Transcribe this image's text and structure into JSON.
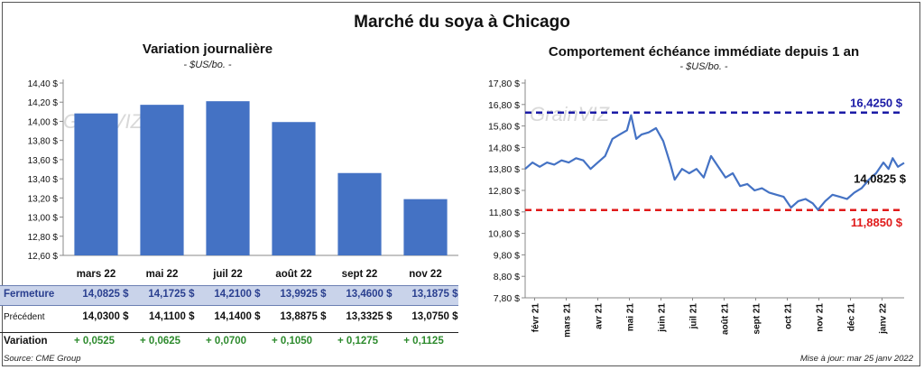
{
  "title": "Marché du soya à Chicago",
  "left": {
    "title": "Variation journalière",
    "units": "- $US/bo. -",
    "rows": {
      "close_label": "Fermeture",
      "prev_label": "Précédent",
      "var_label": "Variation",
      "close": [
        "14,0825  $",
        "14,1725  $",
        "14,2100  $",
        "13,9925  $",
        "13,4600  $",
        "13,1875  $"
      ],
      "prev": [
        "14,0300  $",
        "14,1100  $",
        "14,1400  $",
        "13,8875  $",
        "13,3325  $",
        "13,0750  $"
      ],
      "var": [
        "+ 0,0525",
        "+ 0,0625",
        "+ 0,0700",
        "+ 0,1050",
        "+ 0,1275",
        "+ 0,1125"
      ]
    }
  },
  "right": {
    "title": "Comportement  échéance immédiate depuis 1 an",
    "units": "- $US/bo. -"
  },
  "watermark": "GrainVIZ",
  "source": "Source: CME Group",
  "updated": "Mise à jour: mar 25 janv 2022",
  "colors": {
    "bar": "#4472c4",
    "line": "#4472c4",
    "high": "#1a1aa6",
    "low": "#e01b1b",
    "close_row": "#c9d3ea",
    "positive": "#2e8b2e"
  },
  "chart_data": [
    {
      "type": "bar",
      "title": "Variation journalière",
      "categories": [
        "mars 22",
        "mai 22",
        "juil 22",
        "août 22",
        "sept 22",
        "nov 22"
      ],
      "values": [
        14.0825,
        14.1725,
        14.21,
        13.9925,
        13.46,
        13.1875
      ],
      "ylim": [
        12.6,
        14.4
      ],
      "yticks": [
        12.6,
        12.8,
        13.0,
        13.2,
        13.4,
        13.6,
        13.8,
        14.0,
        14.2,
        14.4
      ],
      "ytick_labels": [
        "12,60 $",
        "12,80 $",
        "13,00 $",
        "13,20 $",
        "13,40 $",
        "13,60 $",
        "13,80 $",
        "14,00 $",
        "14,20 $",
        "14,40 $"
      ],
      "grid": false
    },
    {
      "type": "line",
      "title": "Comportement  échéance immédiate depuis 1 an",
      "x_labels": [
        "févr 21",
        "mars 21",
        "avr 21",
        "mai 21",
        "juin 21",
        "juil 21",
        "août 21",
        "sept 21",
        "oct 21",
        "nov 21",
        "déc 21",
        "janv 22"
      ],
      "ylim": [
        7.8,
        17.8
      ],
      "yticks": [
        7.8,
        8.8,
        9.8,
        10.8,
        11.8,
        12.8,
        13.8,
        14.8,
        15.8,
        16.8,
        17.8
      ],
      "ytick_labels": [
        "7,80 $",
        "8,80 $",
        "9,80 $",
        "10,80 $",
        "11,80 $",
        "12,80 $",
        "13,80 $",
        "14,80 $",
        "15,80 $",
        "16,80 $",
        "17,80 $"
      ],
      "x_start": "2021-01-25",
      "x_end": "2022-01-25",
      "series_points": [
        [
          "2021-01-25",
          13.8
        ],
        [
          "2021-02-01",
          14.1
        ],
        [
          "2021-02-08",
          13.9
        ],
        [
          "2021-02-15",
          14.1
        ],
        [
          "2021-02-22",
          14.0
        ],
        [
          "2021-03-01",
          14.2
        ],
        [
          "2021-03-08",
          14.1
        ],
        [
          "2021-03-15",
          14.3
        ],
        [
          "2021-03-22",
          14.2
        ],
        [
          "2021-03-29",
          13.8
        ],
        [
          "2021-04-05",
          14.1
        ],
        [
          "2021-04-12",
          14.4
        ],
        [
          "2021-04-19",
          15.2
        ],
        [
          "2021-04-26",
          15.4
        ],
        [
          "2021-05-03",
          15.6
        ],
        [
          "2021-05-07",
          16.3
        ],
        [
          "2021-05-12",
          15.2
        ],
        [
          "2021-05-17",
          15.4
        ],
        [
          "2021-05-24",
          15.5
        ],
        [
          "2021-05-31",
          15.7
        ],
        [
          "2021-06-07",
          15.1
        ],
        [
          "2021-06-14",
          14.0
        ],
        [
          "2021-06-18",
          13.3
        ],
        [
          "2021-06-25",
          13.8
        ],
        [
          "2021-07-02",
          13.6
        ],
        [
          "2021-07-09",
          13.8
        ],
        [
          "2021-07-16",
          13.4
        ],
        [
          "2021-07-23",
          14.4
        ],
        [
          "2021-07-30",
          13.9
        ],
        [
          "2021-08-06",
          13.4
        ],
        [
          "2021-08-13",
          13.6
        ],
        [
          "2021-08-20",
          13.0
        ],
        [
          "2021-08-27",
          13.1
        ],
        [
          "2021-09-03",
          12.8
        ],
        [
          "2021-09-10",
          12.9
        ],
        [
          "2021-09-17",
          12.7
        ],
        [
          "2021-09-24",
          12.6
        ],
        [
          "2021-10-01",
          12.5
        ],
        [
          "2021-10-08",
          12.0
        ],
        [
          "2021-10-15",
          12.3
        ],
        [
          "2021-10-22",
          12.4
        ],
        [
          "2021-10-29",
          12.2
        ],
        [
          "2021-11-03",
          11.9
        ],
        [
          "2021-11-10",
          12.3
        ],
        [
          "2021-11-17",
          12.6
        ],
        [
          "2021-11-24",
          12.5
        ],
        [
          "2021-12-01",
          12.4
        ],
        [
          "2021-12-08",
          12.7
        ],
        [
          "2021-12-15",
          12.9
        ],
        [
          "2021-12-22",
          13.3
        ],
        [
          "2021-12-29",
          13.6
        ],
        [
          "2022-01-05",
          14.1
        ],
        [
          "2022-01-10",
          13.8
        ],
        [
          "2022-01-14",
          14.3
        ],
        [
          "2022-01-19",
          13.9
        ],
        [
          "2022-01-25",
          14.0825
        ]
      ],
      "hlines": [
        {
          "value": 16.425,
          "label": "16,4250  $",
          "color": "#1a1aa6"
        },
        {
          "value": 11.885,
          "label": "11,8850  $",
          "color": "#e01b1b"
        }
      ],
      "last_label": "14,0825  $",
      "grid": false
    }
  ]
}
